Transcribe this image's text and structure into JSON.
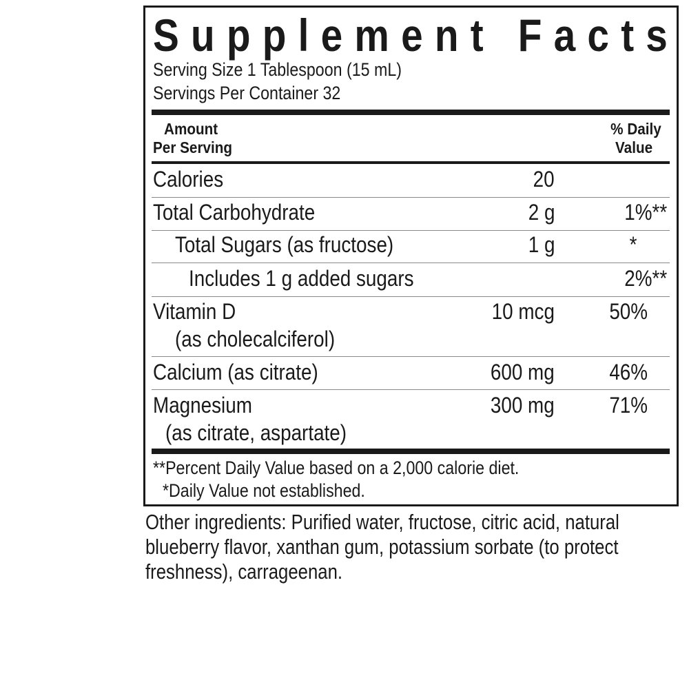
{
  "title": "Supplement Facts",
  "serving_size": "Serving Size 1 Tablespoon (15 mL)",
  "servings_per_container": "Servings Per Container 32",
  "header": {
    "amount_line1": "Amount",
    "amount_line2": "Per Serving",
    "dv_line1": "% Daily",
    "dv_line2": "Value"
  },
  "rows": [
    {
      "name": "Calories",
      "amount": "20",
      "dv": ""
    },
    {
      "name": "Total Carbohydrate",
      "amount": "2 g",
      "dv": "1%**"
    },
    {
      "name": "Total Sugars (as fructose)",
      "amount": "1 g",
      "dv": "*"
    },
    {
      "name": "Includes 1 g added sugars",
      "amount": "",
      "dv": "2%**"
    },
    {
      "name": "Vitamin D",
      "sub": "(as cholecalciferol)",
      "amount": "10 mcg",
      "dv": "50%"
    },
    {
      "name": "Calcium (as citrate)",
      "amount": "600 mg",
      "dv": "46%"
    },
    {
      "name": "Magnesium",
      "sub": "(as citrate, aspartate)",
      "amount": "300 mg",
      "dv": "71%"
    }
  ],
  "footnotes": [
    "**Percent Daily Value based on a 2,000 calorie diet.",
    "*Daily Value not established."
  ],
  "other_ingredients": [
    "Other ingredients: Purified water, fructose, citric acid, natural",
    "blueberry flavor, xanthan gum, potassium sorbate (to protect",
    "freshness), carrageenan."
  ]
}
